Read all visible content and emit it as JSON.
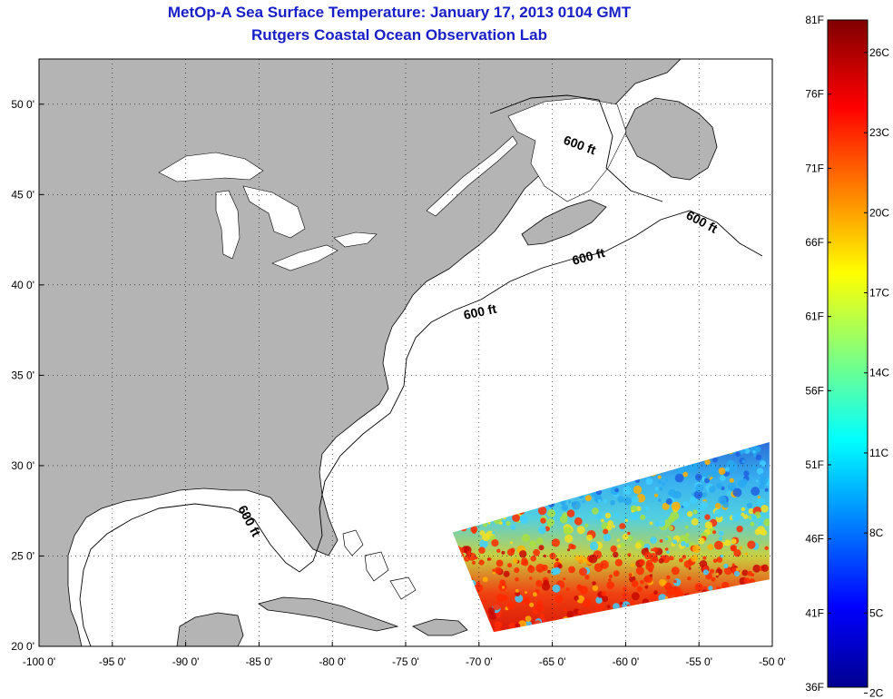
{
  "title": {
    "line1": "MetOp-A Sea Surface Temperature:  January 17, 2013 0104 GMT",
    "line2": "Rutgers Coastal Ocean Observation Lab"
  },
  "map": {
    "lon_range": [
      -100,
      -50
    ],
    "lat_range": [
      20,
      52.5
    ],
    "lon_ticks": [
      {
        "value": -100,
        "label": "-100 0'"
      },
      {
        "value": -95,
        "label": "-95 0'"
      },
      {
        "value": -90,
        "label": "-90 0'"
      },
      {
        "value": -85,
        "label": "-85 0'"
      },
      {
        "value": -80,
        "label": "-80 0'"
      },
      {
        "value": -75,
        "label": "-75 0'"
      },
      {
        "value": -70,
        "label": "-70 0'"
      },
      {
        "value": -65,
        "label": "-65 0'"
      },
      {
        "value": -60,
        "label": "-60 0'"
      },
      {
        "value": -55,
        "label": "-55 0'"
      },
      {
        "value": -50,
        "label": "-50 0'"
      }
    ],
    "lat_ticks": [
      {
        "value": 50,
        "label": "50 0'"
      },
      {
        "value": 45,
        "label": "45 0'"
      },
      {
        "value": 40,
        "label": "40 0'"
      },
      {
        "value": 35,
        "label": "35 0'"
      },
      {
        "value": 30,
        "label": "30 0'"
      },
      {
        "value": 25,
        "label": "25 0'"
      },
      {
        "value": 20,
        "label": "20 0'"
      }
    ],
    "grid": true,
    "land_color": "#b4b4b4",
    "ocean_color": "#ffffff",
    "contour_labels": [
      "600 ft",
      "600 ft",
      "600 ft",
      "600 ft",
      "600 ft",
      "600 ft"
    ],
    "swath": {
      "corners_lonlat": [
        [
          -71.8,
          26.3
        ],
        [
          -50.2,
          31.3
        ],
        [
          -50.2,
          23.7
        ],
        [
          -69.0,
          20.8
        ]
      ]
    }
  },
  "colorbar": {
    "f_labels": [
      "81F",
      "76F",
      "71F",
      "66F",
      "61F",
      "56F",
      "51F",
      "46F",
      "41F",
      "36F"
    ],
    "c_labels": [
      "26C",
      "23C",
      "20C",
      "17C",
      "14C",
      "11C",
      "8C",
      "5C",
      "2C"
    ],
    "f_range": [
      36,
      81
    ],
    "colors": [
      "#00008f",
      "#0000ff",
      "#00ffff",
      "#ffff00",
      "#ff0000",
      "#800000"
    ]
  }
}
